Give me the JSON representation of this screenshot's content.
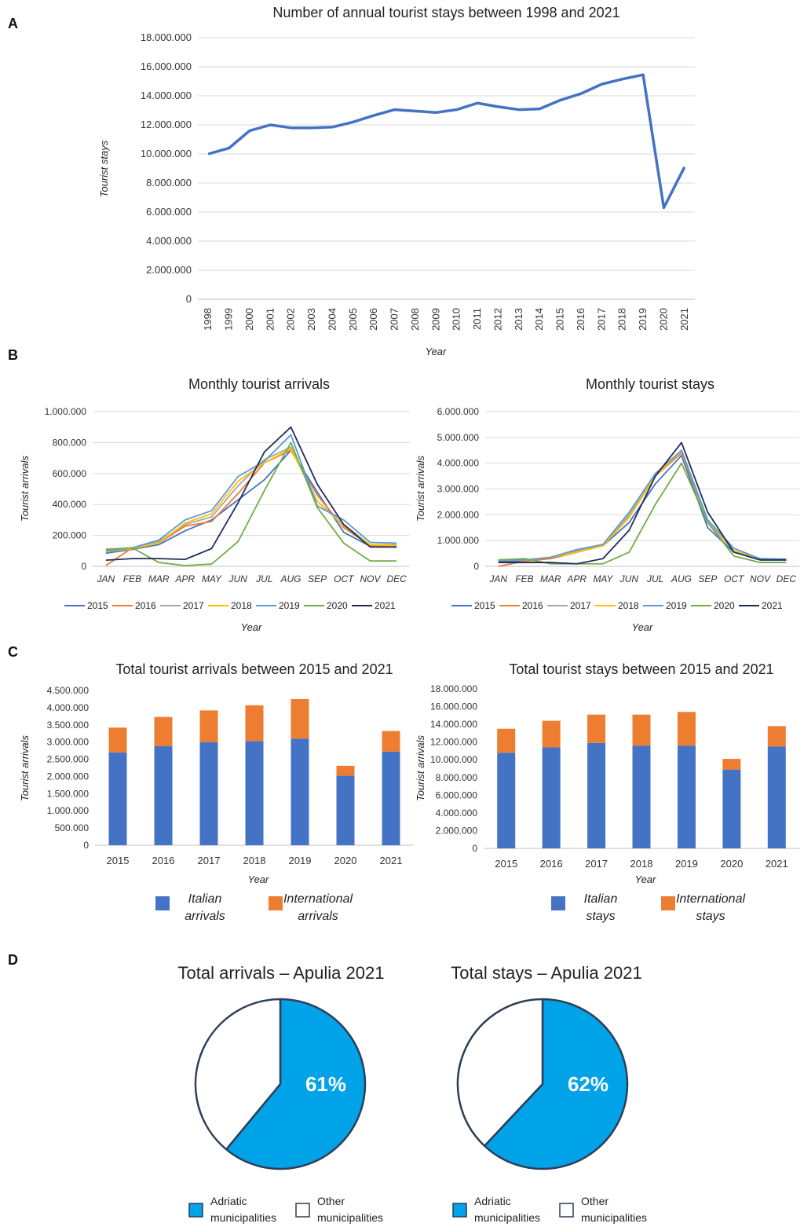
{
  "colors": {
    "s2015": "#4472c4",
    "s2016": "#ed7d31",
    "s2017": "#a5a5a5",
    "s2018": "#ffc000",
    "s2019": "#5b9bd5",
    "s2020": "#70ad47",
    "s2021": "#1f2d5c",
    "italian": "#4472c4",
    "international": "#ed7d31",
    "adriatic": "#00a2e8",
    "other": "#ffffff",
    "pie_border": "#2e3e57"
  },
  "panels": {
    "a": "A",
    "b": "B",
    "c": "C",
    "d": "D"
  },
  "chart_data": [
    {
      "id": "annual",
      "type": "line",
      "title": "Number of annual tourist stays between 1998 and 2021",
      "xlabel": "Year",
      "ylabel": "Tourist stays",
      "ylim": [
        0,
        18000000
      ],
      "yticks": [
        "0",
        "2.000.000",
        "4.000.000",
        "6.000.000",
        "8.000.000",
        "10.000.000",
        "12.000.000",
        "14.000.000",
        "16.000.000",
        "18.000.000"
      ],
      "categories": [
        "1998",
        "1999",
        "2000",
        "2001",
        "2002",
        "2003",
        "2004",
        "2005",
        "2006",
        "2007",
        "2008",
        "2009",
        "2010",
        "2011",
        "2012",
        "2013",
        "2014",
        "2015",
        "2016",
        "2017",
        "2018",
        "2019",
        "2020",
        "2021"
      ],
      "values": [
        10000000,
        10400000,
        11600000,
        12000000,
        11800000,
        11800000,
        11850000,
        12200000,
        12650000,
        13050000,
        12950000,
        12850000,
        13050000,
        13500000,
        13250000,
        13050000,
        13100000,
        13700000,
        14150000,
        14800000,
        15150000,
        15450000,
        6300000,
        9100000
      ],
      "color": "#4472c4"
    },
    {
      "id": "monthly_arrivals",
      "type": "line",
      "title": "Monthly tourist arrivals",
      "xlabel": "Year",
      "ylabel": "Tourist arrivals",
      "ylim": [
        0,
        1000000
      ],
      "yticks": [
        "0",
        "200.000",
        "400.000",
        "600.000",
        "800.000",
        "1.000.000"
      ],
      "categories": [
        "JAN",
        "FEB",
        "MAR",
        "APR",
        "MAY",
        "JUN",
        "JUL",
        "AUG",
        "SEP",
        "OCT",
        "NOV",
        "DEC"
      ],
      "series": [
        {
          "name": "2015",
          "values": [
            85000,
            110000,
            140000,
            230000,
            300000,
            430000,
            560000,
            750000,
            480000,
            220000,
            130000,
            125000
          ]
        },
        {
          "name": "2016",
          "values": [
            5000,
            120000,
            150000,
            260000,
            290000,
            470000,
            670000,
            750000,
            460000,
            250000,
            135000,
            130000
          ]
        },
        {
          "name": "2017",
          "values": [
            100000,
            115000,
            160000,
            270000,
            320000,
            520000,
            690000,
            770000,
            420000,
            270000,
            140000,
            140000
          ]
        },
        {
          "name": "2018",
          "values": [
            95000,
            115000,
            150000,
            280000,
            340000,
            550000,
            670000,
            760000,
            420000,
            260000,
            140000,
            135000
          ]
        },
        {
          "name": "2019",
          "values": [
            100000,
            120000,
            170000,
            300000,
            360000,
            580000,
            680000,
            850000,
            390000,
            300000,
            155000,
            150000
          ]
        },
        {
          "name": "2020",
          "values": [
            110000,
            120000,
            25000,
            5000,
            15000,
            160000,
            490000,
            800000,
            380000,
            150000,
            35000,
            35000
          ]
        },
        {
          "name": "2021",
          "values": [
            40000,
            50000,
            50000,
            45000,
            115000,
            410000,
            740000,
            900000,
            530000,
            270000,
            125000,
            125000
          ]
        }
      ]
    },
    {
      "id": "monthly_stays",
      "type": "line",
      "title": "Monthly tourist stays",
      "xlabel": "Year",
      "ylabel": "Tourist arrivals",
      "ylim": [
        0,
        6000000
      ],
      "yticks": [
        "0",
        "1.000.000",
        "2.000.000",
        "3.000.000",
        "4.000.000",
        "5.000.000",
        "6.000.000"
      ],
      "categories": [
        "JAN",
        "FEB",
        "MAR",
        "APR",
        "MAY",
        "JUN",
        "JUL",
        "AUG",
        "SEP",
        "OCT",
        "NOV",
        "DEC"
      ],
      "series": [
        {
          "name": "2015",
          "values": [
            200000,
            200000,
            300000,
            550000,
            800000,
            1700000,
            3200000,
            4300000,
            1500000,
            550000,
            250000,
            250000
          ]
        },
        {
          "name": "2016",
          "values": [
            0,
            200000,
            300000,
            550000,
            800000,
            1900000,
            3500000,
            4400000,
            1700000,
            600000,
            300000,
            250000
          ]
        },
        {
          "name": "2017",
          "values": [
            250000,
            250000,
            350000,
            600000,
            800000,
            2000000,
            3500000,
            4500000,
            1700000,
            600000,
            300000,
            280000
          ]
        },
        {
          "name": "2018",
          "values": [
            250000,
            250000,
            350000,
            550000,
            800000,
            1900000,
            3500000,
            4500000,
            1800000,
            600000,
            300000,
            280000
          ]
        },
        {
          "name": "2019",
          "values": [
            250000,
            250000,
            350000,
            650000,
            850000,
            2100000,
            3600000,
            4500000,
            1800000,
            700000,
            300000,
            280000
          ]
        },
        {
          "name": "2020",
          "values": [
            250000,
            300000,
            100000,
            100000,
            100000,
            550000,
            2400000,
            4000000,
            1700000,
            400000,
            150000,
            150000
          ]
        },
        {
          "name": "2021",
          "values": [
            150000,
            150000,
            150000,
            100000,
            300000,
            1400000,
            3500000,
            4800000,
            2100000,
            550000,
            250000,
            250000
          ]
        }
      ]
    },
    {
      "id": "total_arrivals",
      "type": "bar",
      "stacked": true,
      "title": "Total tourist arrivals between 2015 and 2021",
      "xlabel": "Year",
      "ylabel": "Tourist arrivals",
      "ylim": [
        0,
        4500000
      ],
      "yticks": [
        "0",
        "500.000",
        "1.000.000",
        "1.500.000",
        "2.000.000",
        "2.500.000",
        "3.000.000",
        "3.500.000",
        "4.000.000",
        "4.500.000"
      ],
      "categories": [
        "2015",
        "2016",
        "2017",
        "2018",
        "2019",
        "2020",
        "2021"
      ],
      "series": [
        {
          "name": "Italian arrivals",
          "values": [
            2700000,
            2880000,
            3000000,
            3030000,
            3100000,
            2020000,
            2720000
          ]
        },
        {
          "name": "International arrivals",
          "values": [
            720000,
            850000,
            920000,
            1040000,
            1150000,
            290000,
            600000
          ]
        }
      ],
      "legend": [
        [
          "Italian",
          "arrivals"
        ],
        [
          "International",
          "arrivals"
        ]
      ]
    },
    {
      "id": "total_stays",
      "type": "bar",
      "stacked": true,
      "title": "Total tourist stays between 2015 and 2021",
      "xlabel": "Year",
      "ylabel": "Tourist arrivals",
      "ylim": [
        0,
        18000000
      ],
      "yticks": [
        "0",
        "2.000.000",
        "4.000.000",
        "6.000.000",
        "8.000.000",
        "10.000.000",
        "12.000.000",
        "14.000.000",
        "16.000.000",
        "18.000.000"
      ],
      "categories": [
        "2015",
        "2016",
        "2017",
        "2018",
        "2019",
        "2020",
        "2021"
      ],
      "series": [
        {
          "name": "Italian stays",
          "values": [
            10800000,
            11400000,
            11900000,
            11600000,
            11600000,
            8900000,
            11500000
          ]
        },
        {
          "name": "International stays",
          "values": [
            2700000,
            3000000,
            3200000,
            3500000,
            3800000,
            1200000,
            2300000
          ]
        }
      ],
      "legend": [
        [
          "Italian",
          "stays"
        ],
        [
          "International",
          "stays"
        ]
      ]
    },
    {
      "id": "pie_arrivals",
      "type": "pie",
      "title": "Total arrivals – Apulia 2021",
      "slices": [
        {
          "name": "Adriatic municipalities",
          "value": 61
        },
        {
          "name": "Other municipalities",
          "value": 39
        }
      ],
      "label": "61%",
      "legend": [
        [
          "Adriatic",
          "municipalities"
        ],
        [
          "Other",
          "municipalities"
        ]
      ]
    },
    {
      "id": "pie_stays",
      "type": "pie",
      "title": "Total stays – Apulia 2021",
      "slices": [
        {
          "name": "Adriatic municipalities",
          "value": 62
        },
        {
          "name": "Other municipalities",
          "value": 38
        }
      ],
      "label": "62%",
      "legend": [
        [
          "Adriatic",
          "municipalities"
        ],
        [
          "Other",
          "municipalities"
        ]
      ]
    }
  ]
}
